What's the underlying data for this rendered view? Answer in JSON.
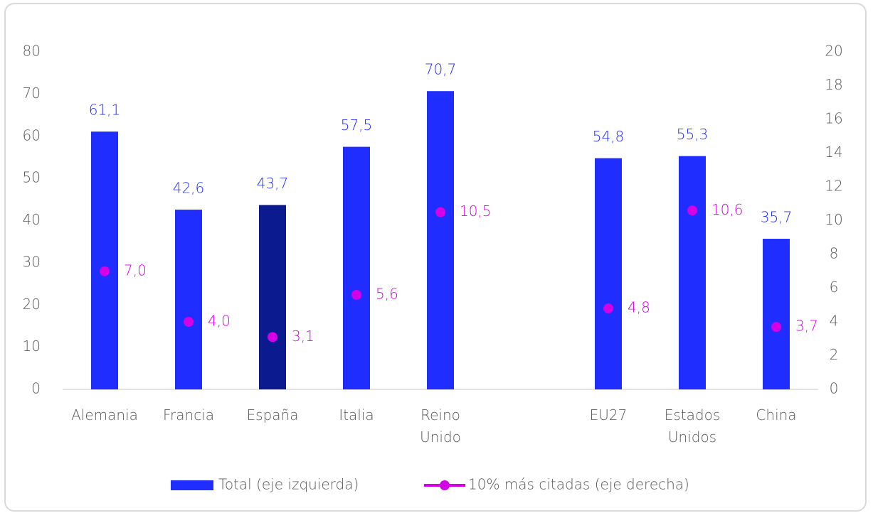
{
  "chart_data": {
    "type": "bar",
    "categories": [
      "Alemania",
      "Francia",
      "España",
      "Italia",
      "Reino Unido",
      null,
      "EU27",
      "Estados Unidos",
      "China"
    ],
    "series": [
      {
        "name": "Total (eje izquierda)",
        "type": "bar",
        "color": "#1f2dff",
        "colors": [
          "#1f2dff",
          "#1f2dff",
          "#0b1a8f",
          "#1f2dff",
          "#1f2dff",
          null,
          "#1f2dff",
          "#1f2dff",
          "#1f2dff"
        ],
        "values": [
          61.1,
          42.6,
          43.7,
          57.5,
          70.7,
          null,
          54.8,
          55.3,
          35.7
        ],
        "value_labels": [
          "61,1",
          "42,6",
          "43,7",
          "57,5",
          "70,7",
          null,
          "54,8",
          "55,3",
          "35,7"
        ]
      },
      {
        "name": "10% más citadas (eje derecha)",
        "type": "scatter",
        "axis": "y2",
        "color": "#d400e6",
        "values": [
          7.0,
          4.0,
          3.1,
          5.6,
          10.5,
          null,
          4.8,
          10.6,
          3.7
        ],
        "value_labels": [
          "7,0",
          "4,0",
          "3,1",
          "5,6",
          "10,5",
          null,
          "4,8",
          "10,6",
          "3,7"
        ]
      }
    ],
    "ylim": [
      0,
      80
    ],
    "yticks": [
      0,
      10,
      20,
      30,
      40,
      50,
      60,
      70,
      80
    ],
    "y2lim": [
      0,
      20
    ],
    "y2ticks": [
      0,
      2,
      4,
      6,
      8,
      10,
      12,
      14,
      16,
      18,
      20
    ],
    "grid": false,
    "legend": "bottom"
  }
}
